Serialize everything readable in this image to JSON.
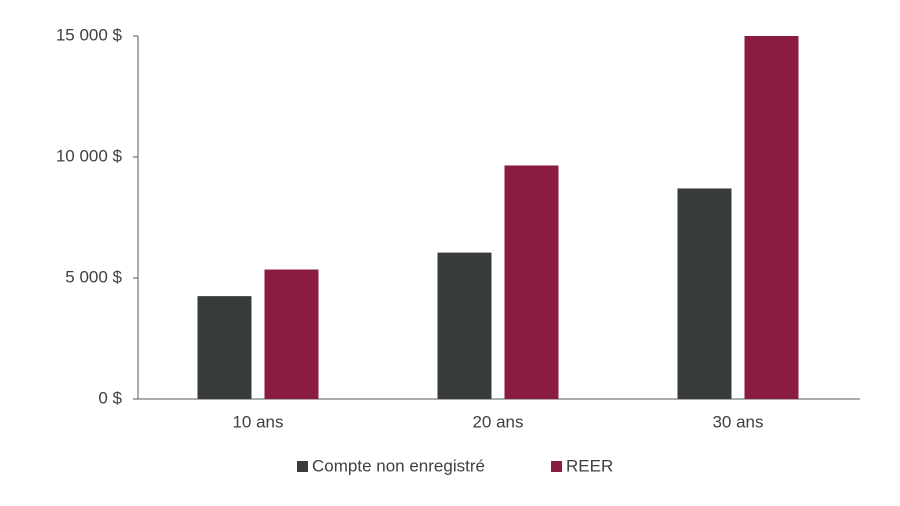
{
  "chart_data": {
    "type": "bar",
    "categories": [
      "10 ans",
      "20 ans",
      "30 ans"
    ],
    "series": [
      {
        "name": "Compte non enregistré",
        "color": "#373b3c",
        "values": [
          4250,
          6050,
          8700
        ]
      },
      {
        "name": "REER",
        "color": "#8a1c40",
        "values": [
          5350,
          9650,
          15000
        ]
      }
    ],
    "ylim": [
      0,
      15000
    ],
    "yticks": [
      {
        "value": 0,
        "label": "0 $"
      },
      {
        "value": 5000,
        "label": "5 000 $"
      },
      {
        "value": 10000,
        "label": "10 000 $"
      },
      {
        "value": 15000,
        "label": "15 000 $"
      }
    ],
    "grid": false,
    "legend": "bottom"
  }
}
